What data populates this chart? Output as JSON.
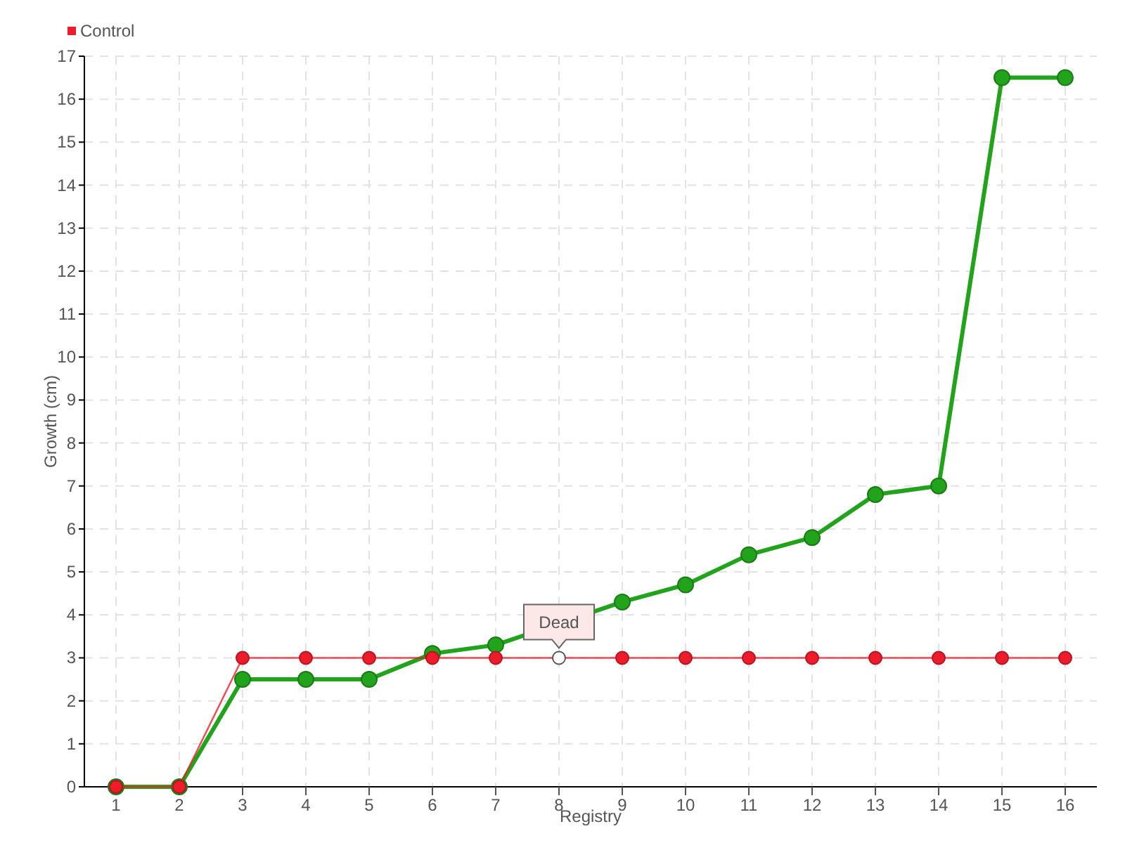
{
  "chart_data": {
    "type": "line",
    "xlabel": "Registry",
    "ylabel": "Growth (cm)",
    "categories": [
      "1",
      "2",
      "3",
      "4",
      "5",
      "6",
      "7",
      "8",
      "9",
      "10",
      "11",
      "12",
      "13",
      "14",
      "15",
      "16"
    ],
    "series": [
      {
        "color": "#22a31c",
        "values": [
          0,
          0,
          2.5,
          2.5,
          2.5,
          3.1,
          3.3,
          null,
          4.3,
          4.7,
          5.4,
          5.8,
          6.8,
          7.0,
          16.5,
          16.5
        ]
      },
      {
        "name": "Control",
        "color": "#ee1c2b",
        "colors": [
          "#ee1c2b",
          "#ee1c2b",
          "#ee1c2b",
          "#ee1c2b",
          "#ee1c2b",
          "#ee1c2b",
          "#ee1c2b",
          "#ffffff",
          "#ee1c2b",
          "#ee1c2b",
          "#ee1c2b",
          "#ee1c2b",
          "#ee1c2b",
          "#ee1c2b",
          "#ee1c2b",
          "#ee1c2b"
        ],
        "values": [
          0,
          0,
          3,
          3,
          3,
          3,
          3,
          3,
          3,
          3,
          3,
          3,
          3,
          3,
          3,
          3
        ]
      }
    ],
    "ylim": [
      0,
      17
    ],
    "yticks": [
      0,
      1,
      2,
      3,
      4,
      5,
      6,
      7,
      8,
      9,
      10,
      11,
      12,
      13,
      14,
      15,
      16,
      17
    ],
    "grid": true,
    "legend": "top left",
    "marker": "circle",
    "line_style": "solid",
    "annotations": [
      {
        "text": "Dead",
        "x": "8",
        "y": 3
      }
    ]
  }
}
